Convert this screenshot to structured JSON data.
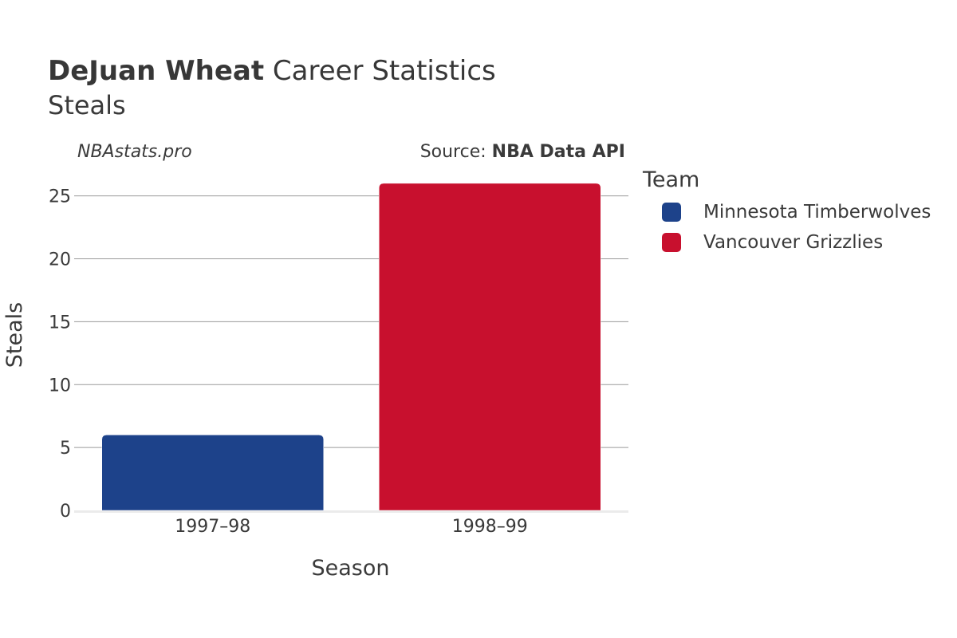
{
  "header": {
    "title_bold": "DeJuan Wheat",
    "title_rest": " Career Statistics",
    "subtitle": "Steals",
    "credit": "NBAstats.pro",
    "source_prefix": "Source: ",
    "source_bold": "NBA Data API"
  },
  "legend": {
    "title": "Team",
    "items": [
      {
        "label": "Minnesota Timberwolves",
        "color": "#1d428a"
      },
      {
        "label": "Vancouver Grizzlies",
        "color": "#c8102e"
      }
    ]
  },
  "chart_data": {
    "type": "bar",
    "title": "DeJuan Wheat Career Statistics",
    "subtitle": "Steals",
    "xlabel": "Season",
    "ylabel": "Steals",
    "categories": [
      "1997–98",
      "1998–99"
    ],
    "series": [
      {
        "name": "Minnesota Timberwolves",
        "color": "#1d428a",
        "values": [
          6,
          null
        ]
      },
      {
        "name": "Vancouver Grizzlies",
        "color": "#c8102e",
        "values": [
          null,
          26
        ]
      }
    ],
    "ylim": [
      0,
      26.5
    ],
    "yticks": [
      0,
      5,
      10,
      15,
      20,
      25
    ],
    "grid": true,
    "legend_position": "right"
  }
}
